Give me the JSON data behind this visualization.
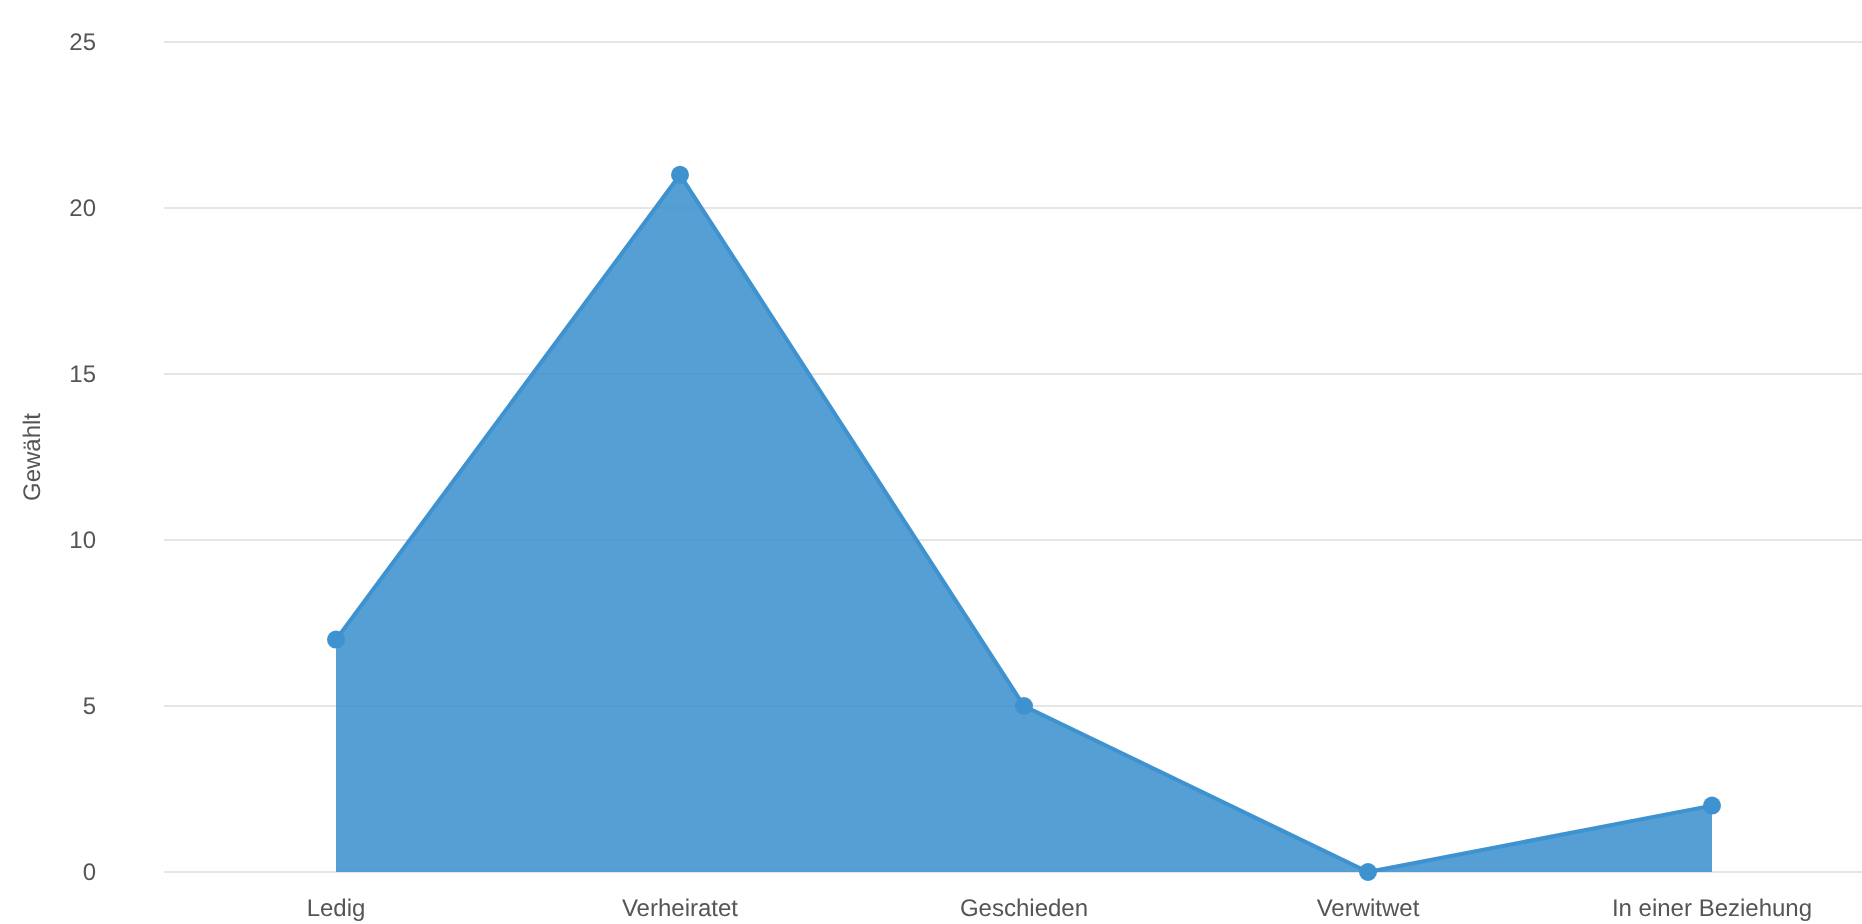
{
  "chart_data": {
    "type": "area",
    "ylabel": "Gewählt",
    "categories": [
      "Ledig",
      "Verheiratet",
      "Geschieden",
      "Verwitwet",
      "In einer Beziehung"
    ],
    "series": [
      {
        "color": "#3d92cf",
        "values": [
          7,
          21,
          5,
          0,
          2
        ]
      }
    ],
    "ylim": [
      0,
      25
    ],
    "yticks": [
      0,
      5,
      10,
      15,
      20,
      25
    ],
    "grid": "y",
    "marker": "circle"
  }
}
